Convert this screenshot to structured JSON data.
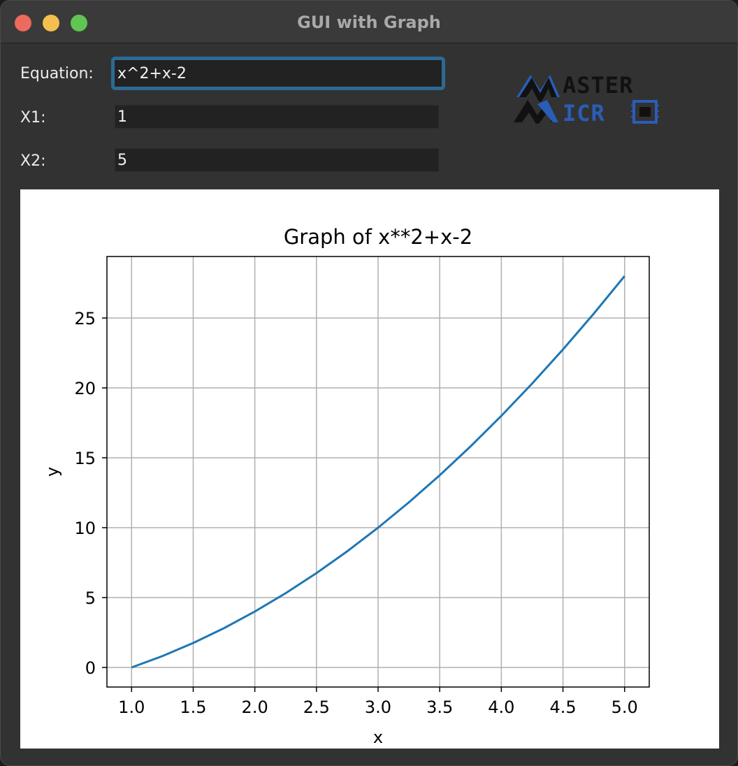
{
  "window": {
    "title": "GUI with Graph"
  },
  "form": {
    "equation_label": "Equation:",
    "equation_value": "x^2+x-2",
    "x1_label": "X1:",
    "x1_value": "1",
    "x2_label": "X2:",
    "x2_value": "5"
  },
  "logo": {
    "line1": "ASTER",
    "line2": "ICR",
    "big_letters": [
      "M",
      "M"
    ]
  },
  "colors": {
    "series": "#1f77b4",
    "grid": "#b0b0b0",
    "focus_ring": "#2d6a94",
    "logo_blue": "#2a5db8"
  },
  "chart_data": {
    "type": "line",
    "title": "Graph of x**2+x-2",
    "xlabel": "x",
    "ylabel": "y",
    "xlim": [
      0.8,
      5.2
    ],
    "ylim": [
      -1.4,
      29.4
    ],
    "xticks": [
      1.0,
      1.5,
      2.0,
      2.5,
      3.0,
      3.5,
      4.0,
      4.5,
      5.0
    ],
    "xtick_labels": [
      "1.0",
      "1.5",
      "2.0",
      "2.5",
      "3.0",
      "3.5",
      "4.0",
      "4.5",
      "5.0"
    ],
    "yticks": [
      0,
      5,
      10,
      15,
      20,
      25
    ],
    "ytick_labels": [
      "0",
      "5",
      "10",
      "15",
      "20",
      "25"
    ],
    "grid": true,
    "series": [
      {
        "x": [
          1.0,
          1.25,
          1.5,
          1.75,
          2.0,
          2.25,
          2.5,
          2.75,
          3.0,
          3.25,
          3.5,
          3.75,
          4.0,
          4.25,
          4.5,
          4.75,
          5.0
        ],
        "y": [
          0,
          0.8125,
          1.75,
          2.8125,
          4,
          5.3125,
          6.75,
          8.3125,
          10,
          11.8125,
          13.75,
          15.8125,
          18,
          20.3125,
          22.75,
          25.3125,
          28
        ]
      }
    ]
  }
}
